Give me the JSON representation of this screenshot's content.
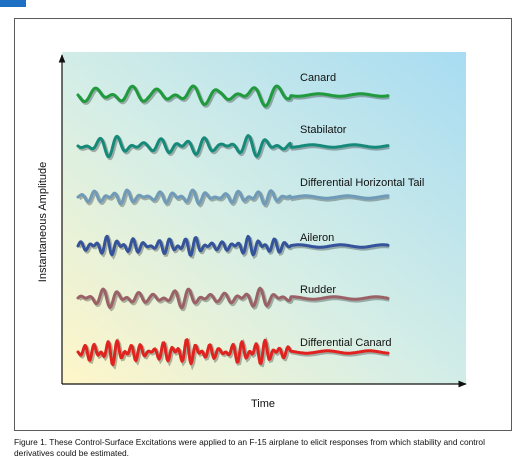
{
  "chart_data": {
    "type": "line",
    "xlabel": "Time",
    "ylabel": "Instantaneous Amplitude",
    "series": [
      {
        "name": "Canard",
        "color": "#1f9a3c"
      },
      {
        "name": "Stabilator",
        "color": "#168a7a"
      },
      {
        "name": "Differential Horizontal Tail",
        "color": "#6f9ab8"
      },
      {
        "name": "Aileron",
        "color": "#34539a"
      },
      {
        "name": "Rudder",
        "color": "#9a6266"
      },
      {
        "name": "Differential Canard",
        "color": "#e0231f"
      }
    ],
    "grid": false,
    "legend": "right-labels"
  },
  "caption": "Figure 1. These Control-Surface Excitations were applied to an F-15 airplane to elicit responses from which stability and control derivatives could be estimated."
}
